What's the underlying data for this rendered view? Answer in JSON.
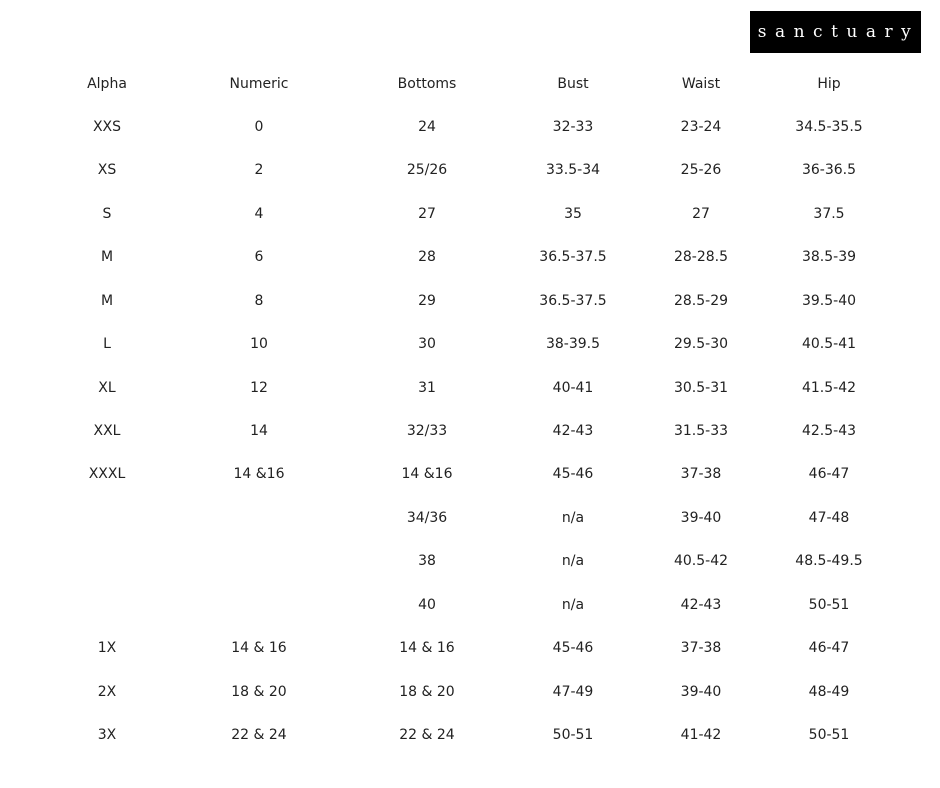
{
  "brand": "sanctuary",
  "headers": [
    "Alpha",
    "Numeric",
    "Bottoms",
    "Bust",
    "Waist",
    "Hip"
  ],
  "rows": [
    [
      "XXS",
      "0",
      "24",
      "32-33",
      "23-24",
      "34.5-35.5"
    ],
    [
      "XS",
      "2",
      "25/26",
      "33.5-34",
      "25-26",
      "36-36.5"
    ],
    [
      "S",
      "4",
      "27",
      "35",
      "27",
      "37.5"
    ],
    [
      "M",
      "6",
      "28",
      "36.5-37.5",
      "28-28.5",
      "38.5-39"
    ],
    [
      "M",
      "8",
      "29",
      "36.5-37.5",
      "28.5-29",
      "39.5-40"
    ],
    [
      "L",
      "10",
      "30",
      "38-39.5",
      "29.5-30",
      "40.5-41"
    ],
    [
      "XL",
      "12",
      "31",
      "40-41",
      "30.5-31",
      "41.5-42"
    ],
    [
      "XXL",
      "14",
      "32/33",
      "42-43",
      "31.5-33",
      "42.5-43"
    ],
    [
      "XXXL",
      "14 &16",
      "14 &16",
      "45-46",
      "37-38",
      "46-47"
    ],
    [
      "",
      "",
      "34/36",
      "n/a",
      "39-40",
      "47-48"
    ],
    [
      "",
      "",
      "38",
      "n/a",
      "40.5-42",
      "48.5-49.5"
    ],
    [
      "",
      "",
      "40",
      "n/a",
      "42-43",
      "50-51"
    ],
    [
      "1X",
      "14 & 16",
      "14 & 16",
      "45-46",
      "37-38",
      "46-47"
    ],
    [
      "2X",
      "18 & 20",
      "18 & 20",
      "47-49",
      "39-40",
      "48-49"
    ],
    [
      "3X",
      "22 & 24",
      "22 & 24",
      "50-51",
      "41-42",
      "50-51"
    ]
  ]
}
